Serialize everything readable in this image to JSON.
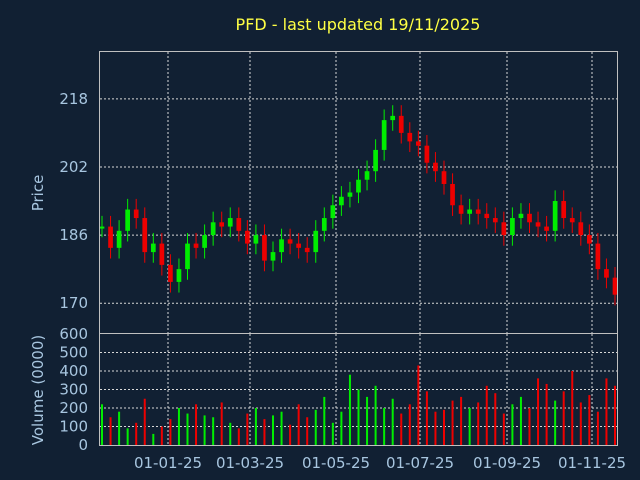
{
  "chart_data": [
    {
      "type": "candlestick",
      "title": "PFD - last updated 19/11/2025",
      "ylabel": "Price",
      "ylim": [
        163,
        229
      ],
      "yticks": [
        "170",
        "186",
        "202",
        "218"
      ],
      "grid": true,
      "up_color": "#00ee00",
      "down_color": "#ee0000",
      "dates": [
        "01-12-24",
        "05-12-24",
        "10-12-24",
        "15-12-24",
        "20-12-24",
        "26-12-24",
        "01-01-25",
        "06-01-25",
        "11-01-25",
        "16-01-25",
        "21-01-25",
        "27-01-25",
        "01-02-25",
        "07-02-25",
        "13-02-25",
        "19-02-25",
        "25-02-25",
        "01-03-25",
        "07-03-25",
        "13-03-25",
        "19-03-25",
        "25-03-25",
        "01-04-25",
        "07-04-25",
        "13-04-25",
        "19-04-25",
        "25-04-25",
        "01-05-25",
        "07-05-25",
        "13-05-25",
        "19-05-25",
        "25-05-25",
        "01-06-25",
        "07-06-25",
        "13-06-25",
        "19-06-25",
        "25-06-25",
        "01-07-25",
        "07-07-25",
        "13-07-25",
        "19-07-25",
        "25-07-25",
        "01-08-25",
        "07-08-25",
        "13-08-25",
        "19-08-25",
        "25-08-25",
        "01-09-25",
        "07-09-25",
        "13-09-25",
        "19-09-25",
        "25-09-25",
        "01-10-25",
        "07-10-25",
        "13-10-25",
        "19-10-25",
        "25-10-25",
        "01-11-25",
        "07-11-25",
        "13-11-25",
        "19-11-25"
      ],
      "close": [
        188,
        183,
        187,
        192,
        190,
        182,
        184,
        179,
        175,
        178,
        184,
        183,
        186,
        189,
        188,
        190,
        187,
        184,
        186,
        180,
        182,
        185,
        184,
        183,
        182,
        187,
        190,
        193,
        195,
        196,
        199,
        201,
        206,
        213,
        214,
        210,
        208,
        207,
        203,
        201,
        198,
        193,
        191,
        192,
        191,
        190,
        189,
        186,
        190,
        191,
        189,
        188,
        187,
        194,
        190,
        189,
        186,
        184,
        178,
        176,
        172
      ],
      "volume": [
        220,
        150,
        180,
        90,
        120,
        250,
        60,
        100,
        140,
        200,
        170,
        220,
        160,
        150,
        230,
        120,
        90,
        170,
        200,
        140,
        160,
        180,
        110,
        220,
        150,
        190,
        260,
        120,
        180,
        380,
        300,
        260,
        320,
        200,
        250,
        170,
        220,
        430,
        290,
        180,
        190,
        240,
        260,
        200,
        230,
        320,
        280,
        170,
        220,
        260,
        200,
        360,
        330,
        240,
        290,
        400,
        230,
        270,
        180,
        360,
        320
      ]
    },
    {
      "type": "bar",
      "ylabel": "Volume (0000)",
      "ylim": [
        0,
        600
      ],
      "yticks": [
        "0",
        "100",
        "200",
        "300",
        "400",
        "500",
        "600"
      ],
      "xticks": [
        "01-01-25",
        "01-03-25",
        "01-05-25",
        "01-07-25",
        "01-09-25",
        "01-11-25"
      ],
      "grid": true
    }
  ]
}
